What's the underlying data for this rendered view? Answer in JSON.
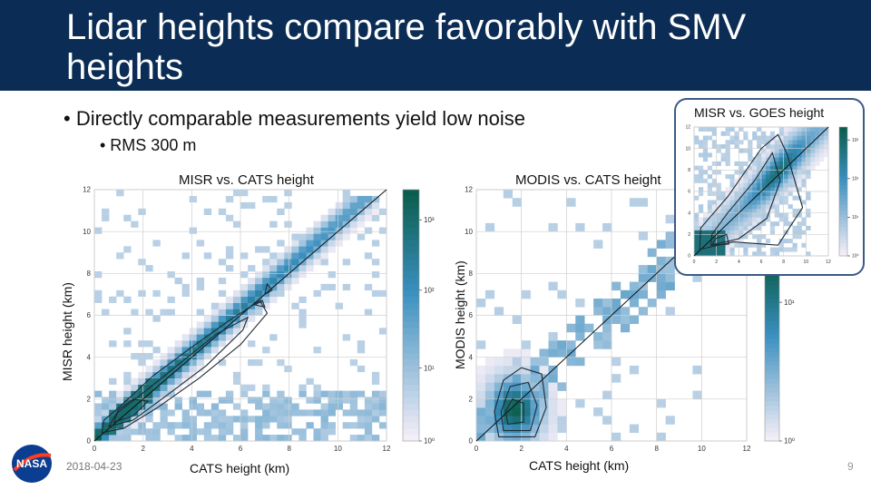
{
  "slide": {
    "title": "Lidar heights compare favorably with SMV heights",
    "bullet1": "• Directly comparable measurements yield low noise",
    "bullet2": "• RMS 300 m",
    "date": "2018-04-23",
    "page_number": "9",
    "logo_text": "NASA"
  },
  "colors": {
    "header": "#0b2d55",
    "density_low": "#f2eef6",
    "density_mid": "#3a8fbf",
    "density_high": "#0b5e4e",
    "contour": "#1f2a33"
  },
  "chart_data": [
    {
      "type": "heatmap",
      "title": "MISR vs. CATS height",
      "xlabel": "CATS height (km)",
      "ylabel": "MISR height (km)",
      "xlim": [
        0,
        12
      ],
      "ylim": [
        0,
        12
      ],
      "xticks": [
        0,
        2,
        4,
        6,
        8,
        10,
        12
      ],
      "yticks": [
        0,
        2,
        4,
        6,
        8,
        10,
        12
      ],
      "colorbar_ticks": [
        "10⁰",
        "10¹",
        "10²",
        "10³"
      ],
      "colorbar_log_range": [
        0,
        3.4
      ],
      "reference_line": [
        [
          0,
          0
        ],
        [
          12,
          12
        ]
      ],
      "grid": true,
      "density_ridge": [
        [
          0.5,
          0.6
        ],
        [
          1,
          1.1
        ],
        [
          2,
          2.1
        ],
        [
          3,
          3.1
        ],
        [
          4,
          4.2
        ],
        [
          5,
          5.2
        ],
        [
          6,
          6.2
        ],
        [
          7,
          7.4
        ],
        [
          8,
          8.2
        ],
        [
          9,
          9.2
        ],
        [
          10,
          10.1
        ],
        [
          11,
          11.2
        ]
      ],
      "contours": [
        [
          [
            0.3,
            0.4
          ],
          [
            1.2,
            0.6
          ],
          [
            2.6,
            1.6
          ],
          [
            4.3,
            3.0
          ],
          [
            6.0,
            4.6
          ],
          [
            7.1,
            6.1
          ],
          [
            6.8,
            6.7
          ],
          [
            5.6,
            5.8
          ],
          [
            3.9,
            4.4
          ],
          [
            2.4,
            3.1
          ],
          [
            1.1,
            1.7
          ],
          [
            0.4,
            1.0
          ]
        ],
        [
          [
            0.6,
            0.7
          ],
          [
            1.6,
            1.0
          ],
          [
            3.0,
            2.2
          ],
          [
            4.6,
            3.6
          ],
          [
            6.1,
            5.3
          ],
          [
            6.3,
            5.9
          ],
          [
            5.0,
            5.1
          ],
          [
            3.3,
            3.5
          ],
          [
            1.9,
            2.2
          ],
          [
            0.9,
            1.3
          ]
        ],
        [
          [
            0.8,
            0.9
          ],
          [
            1.6,
            1.2
          ],
          [
            2.2,
            1.9
          ],
          [
            1.6,
            2.0
          ],
          [
            1.0,
            1.5
          ]
        ],
        [
          [
            7.0,
            7.0
          ],
          [
            7.3,
            7.2
          ],
          [
            7.1,
            7.5
          ]
        ],
        [
          [
            6.6,
            6.5
          ],
          [
            7.0,
            6.4
          ],
          [
            6.9,
            6.7
          ]
        ]
      ]
    },
    {
      "type": "heatmap",
      "title": "MODIS vs. CATS height",
      "xlabel": "CATS height (km)",
      "ylabel": "MODIS height (km)",
      "xlim": [
        0,
        12
      ],
      "ylim": [
        0,
        12
      ],
      "xticks": [
        0,
        2,
        4,
        6,
        8,
        10,
        12
      ],
      "yticks": [
        0,
        2,
        4,
        6,
        8,
        10,
        12
      ],
      "colorbar_ticks": [
        "10⁰",
        "10¹"
      ],
      "reference_line": [
        [
          0,
          0
        ],
        [
          12,
          12
        ]
      ],
      "grid": true,
      "cluster_center": [
        1.7,
        1.5
      ],
      "contours": [
        [
          [
            1.0,
            0.2
          ],
          [
            2.6,
            0.2
          ],
          [
            3.1,
            1.6
          ],
          [
            2.9,
            3.2
          ],
          [
            2.0,
            3.5
          ],
          [
            1.2,
            2.9
          ],
          [
            0.8,
            1.4
          ]
        ],
        [
          [
            1.2,
            0.5
          ],
          [
            2.4,
            0.5
          ],
          [
            2.7,
            1.7
          ],
          [
            2.3,
            2.8
          ],
          [
            1.5,
            2.6
          ],
          [
            1.1,
            1.4
          ]
        ],
        [
          [
            1.4,
            0.8
          ],
          [
            2.1,
            0.9
          ],
          [
            2.1,
            1.8
          ],
          [
            1.6,
            2.0
          ],
          [
            1.3,
            1.4
          ]
        ]
      ]
    },
    {
      "type": "heatmap",
      "title": "MISR vs. GOES height",
      "xlim": [
        0,
        12
      ],
      "ylim": [
        0,
        12
      ],
      "xticks": [
        0,
        2,
        4,
        6,
        8,
        10,
        12
      ],
      "yticks": [
        0,
        2,
        4,
        6,
        8,
        10,
        12
      ],
      "colorbar_ticks": [
        "10⁰",
        "10¹",
        "10²",
        "10³"
      ],
      "reference_line": [
        [
          0,
          0
        ],
        [
          12,
          12
        ]
      ],
      "contours": [
        [
          [
            0.5,
            0.6
          ],
          [
            3.5,
            1.3
          ],
          [
            7.5,
            1.0
          ],
          [
            9.7,
            4.5
          ],
          [
            8.3,
            9.5
          ],
          [
            7.5,
            11.3
          ],
          [
            6.0,
            10.0
          ],
          [
            3.0,
            5.5
          ],
          [
            0.6,
            2.6
          ]
        ],
        [
          [
            1.5,
            1.0
          ],
          [
            4.0,
            1.6
          ],
          [
            6.5,
            3.5
          ],
          [
            7.7,
            7.0
          ],
          [
            7.0,
            9.6
          ],
          [
            5.4,
            7.0
          ],
          [
            3.0,
            4.0
          ],
          [
            1.6,
            2.0
          ]
        ],
        [
          [
            1.6,
            1.0
          ],
          [
            3.1,
            1.1
          ],
          [
            2.9,
            2.0
          ],
          [
            1.9,
            1.6
          ]
        ]
      ]
    }
  ]
}
